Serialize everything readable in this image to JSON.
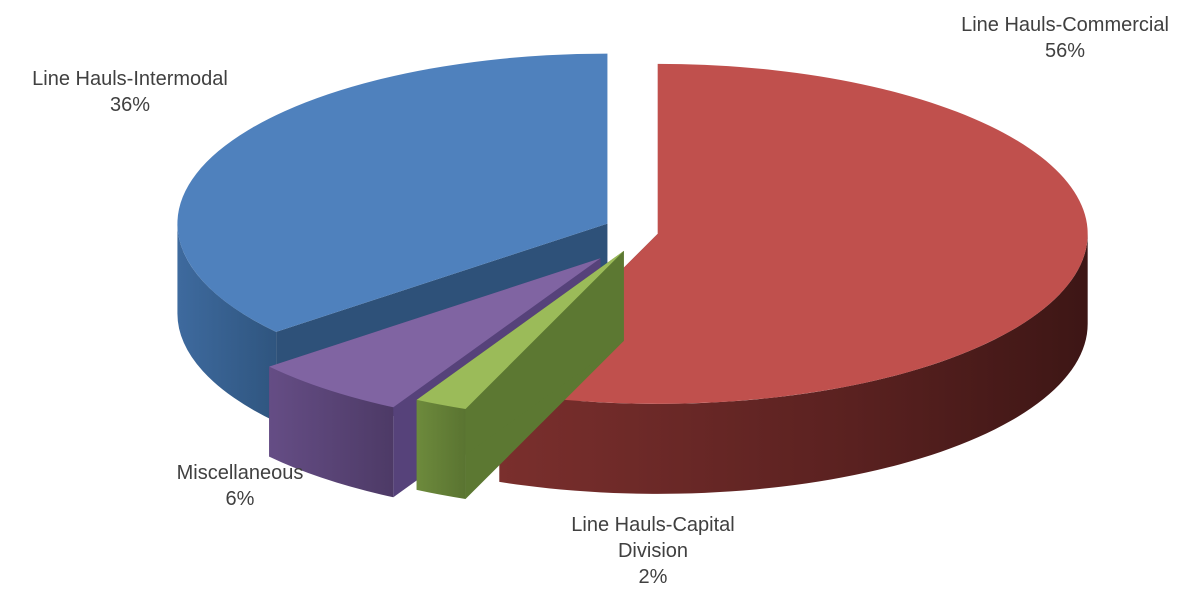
{
  "chart_data": {
    "type": "pie",
    "title": "",
    "three_d": true,
    "exploded": true,
    "slices": [
      {
        "label": "Line Hauls-Commercial",
        "label_lines": [
          "Line Hauls-Commercial"
        ],
        "value_label": "56%",
        "value": 56,
        "color": "#C0504D"
      },
      {
        "label": "Line Hauls-Capital Division",
        "label_lines": [
          "Line Hauls-Capital",
          "Division"
        ],
        "value_label": "2%",
        "value": 2,
        "color": "#9BBB59"
      },
      {
        "label": "Miscellaneous",
        "label_lines": [
          "Miscellaneous"
        ],
        "value_label": "6%",
        "value": 6,
        "color": "#8064A2"
      },
      {
        "label": "Line Hauls-Intermodal",
        "label_lines": [
          "Line Hauls-Intermodal"
        ],
        "value_label": "36%",
        "value": 36,
        "color": "#4F81BD"
      }
    ],
    "legend": "none",
    "data_labels": "outside"
  }
}
